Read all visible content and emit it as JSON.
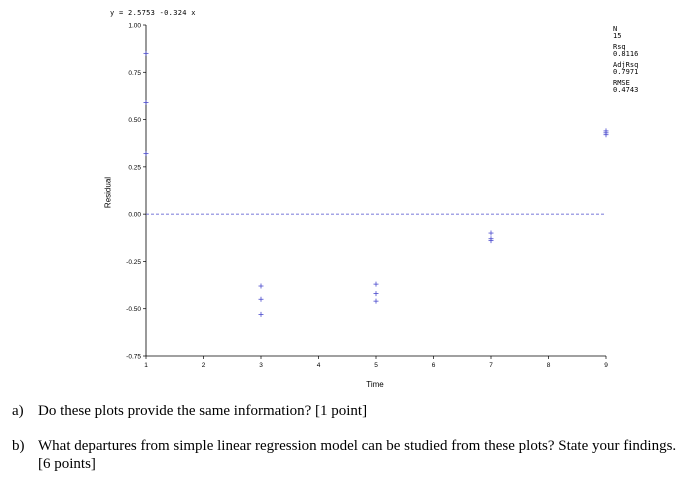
{
  "chart_data": {
    "type": "scatter",
    "title": "",
    "equation": "y = 2.5753 -0.324 x",
    "xlabel": "Time",
    "ylabel": "Residual",
    "xlim": [
      1,
      9
    ],
    "ylim": [
      -0.75,
      1.0
    ],
    "x_ticks": [
      1,
      2,
      3,
      4,
      5,
      6,
      7,
      8,
      9
    ],
    "y_ticks": [
      1.0,
      0.75,
      0.5,
      0.25,
      0.0,
      -0.25,
      -0.5,
      -0.75
    ],
    "y_tick_labels": [
      "1.00",
      "0.75",
      "0.50",
      "0.25",
      "0.00",
      "-0.25",
      "-0.50",
      "-0.75"
    ],
    "reference_line": 0.0,
    "marker": "+",
    "marker_color": "#4a4acd",
    "reference_line_color": "#4a4acd",
    "series": [
      {
        "x": [
          1,
          1,
          1,
          3,
          3,
          3,
          5,
          5,
          5,
          7,
          7,
          7,
          9,
          9,
          9
        ],
        "y": [
          0.85,
          0.59,
          0.32,
          -0.38,
          -0.45,
          -0.53,
          -0.37,
          -0.42,
          -0.46,
          -0.1,
          -0.13,
          -0.14,
          0.42,
          0.43,
          0.44
        ]
      }
    ],
    "stats": [
      {
        "label": "N",
        "value": "15"
      },
      {
        "label": "Rsq",
        "value": "0.8116"
      },
      {
        "label": "AdjRsq",
        "value": "0.7971"
      },
      {
        "label": "RMSE",
        "value": "0.4743"
      }
    ]
  },
  "questions": [
    {
      "id": "a)",
      "text": "Do these plots provide the same information? [1 point]"
    },
    {
      "id": "b)",
      "text": "What departures from simple linear regression model can be studied from these plots? State your findings. [6 points]"
    }
  ]
}
